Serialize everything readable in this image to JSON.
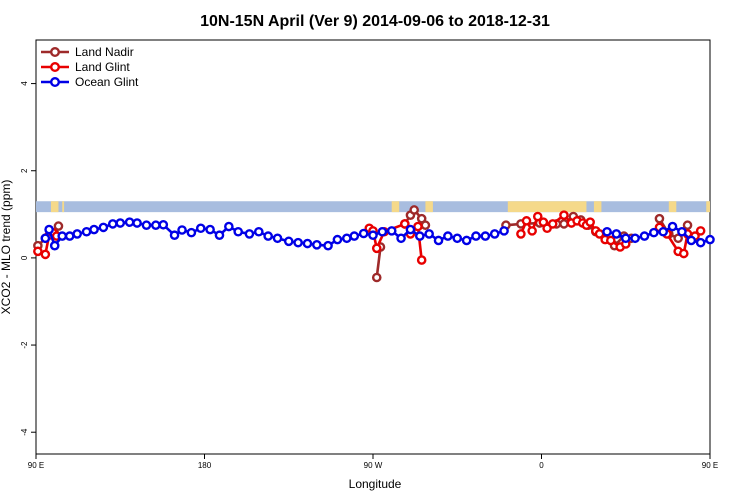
{
  "chart_data": {
    "type": "line",
    "title": "10N-15N April (Ver 9)   2014-09-06 to 2018-12-31",
    "xlabel": "Longitude",
    "ylabel": "XCO2 - MLO trend (ppm)",
    "xlim": [
      90,
      450
    ],
    "ylim": [
      -4.5,
      5
    ],
    "x_ticks": [
      {
        "value": 90,
        "label": "90 E"
      },
      {
        "value": 180,
        "label": "180"
      },
      {
        "value": 270,
        "label": "90 W"
      },
      {
        "value": 360,
        "label": "0"
      },
      {
        "value": 450,
        "label": "90 E"
      },
      {
        "value": 540,
        "label": "180"
      }
    ],
    "y_ticks": [
      -4,
      -2,
      0,
      2,
      4
    ],
    "legend_position": "top-left",
    "land_band": {
      "y_range": [
        1.05,
        1.3
      ],
      "ocean_color": "#a8bddf",
      "land_color": "#f5d98a"
    },
    "series": [
      {
        "name": "Land Nadir",
        "color": "#9e2a2a",
        "x": [
          91,
          95,
          100,
          102,
          272,
          274,
          287,
          290,
          292,
          296,
          298,
          341,
          349,
          359,
          368,
          372,
          377,
          381,
          385,
          389,
          399,
          404,
          408,
          423,
          428,
          433,
          438
        ],
        "y": [
          0.28,
          0.45,
          0.55,
          0.73,
          -0.45,
          0.25,
          0.78,
          0.98,
          1.1,
          0.9,
          0.75,
          0.75,
          0.78,
          0.8,
          0.78,
          0.78,
          0.95,
          0.87,
          0.75,
          0.6,
          0.28,
          0.5,
          0.45,
          0.9,
          0.55,
          0.45,
          0.75
        ]
      },
      {
        "name": "Land Glint",
        "color": "#e80000",
        "x": [
          91,
          95,
          97,
          99,
          101,
          268,
          270,
          272,
          276,
          287,
          290,
          294,
          296,
          349,
          352,
          355,
          358,
          361,
          363,
          366,
          372,
          376,
          379,
          382,
          384,
          386,
          389,
          391,
          394,
          397,
          402,
          405,
          423,
          427,
          433,
          436,
          438,
          440,
          442,
          445
        ],
        "y": [
          0.15,
          0.08,
          0.52,
          0.58,
          0.5,
          0.68,
          0.62,
          0.22,
          0.6,
          0.78,
          0.55,
          0.72,
          -0.05,
          0.55,
          0.85,
          0.62,
          0.95,
          0.82,
          0.68,
          0.78,
          0.98,
          0.8,
          0.85,
          0.8,
          0.75,
          0.82,
          0.62,
          0.55,
          0.42,
          0.4,
          0.25,
          0.32,
          0.7,
          0.55,
          0.15,
          0.1,
          0.55,
          0.42,
          0.5,
          0.62
        ]
      },
      {
        "name": "Ocean Glint",
        "color": "#0000e6",
        "x": [
          95,
          97,
          100,
          104,
          108,
          112,
          117,
          121,
          126,
          131,
          135,
          140,
          144,
          149,
          154,
          158,
          164,
          168,
          173,
          178,
          183,
          188,
          193,
          198,
          204,
          209,
          214,
          219,
          225,
          230,
          235,
          240,
          246,
          251,
          256,
          260,
          265,
          270,
          275,
          280,
          285,
          290,
          295,
          300,
          305,
          310,
          315,
          320,
          325,
          330,
          335,
          340,
          395,
          400,
          405,
          410,
          415,
          420,
          425,
          430,
          435,
          440,
          445,
          450
        ],
        "y": [
          0.45,
          0.65,
          0.28,
          0.5,
          0.5,
          0.55,
          0.6,
          0.65,
          0.7,
          0.78,
          0.8,
          0.82,
          0.8,
          0.75,
          0.75,
          0.76,
          0.52,
          0.64,
          0.58,
          0.68,
          0.65,
          0.52,
          0.72,
          0.6,
          0.55,
          0.6,
          0.5,
          0.45,
          0.38,
          0.35,
          0.33,
          0.3,
          0.28,
          0.42,
          0.45,
          0.5,
          0.56,
          0.52,
          0.6,
          0.62,
          0.45,
          0.65,
          0.5,
          0.55,
          0.4,
          0.5,
          0.45,
          0.4,
          0.5,
          0.5,
          0.55,
          0.62,
          0.6,
          0.55,
          0.45,
          0.45,
          0.5,
          0.58,
          0.6,
          0.72,
          0.6,
          0.4,
          0.35,
          0.42
        ]
      }
    ]
  }
}
